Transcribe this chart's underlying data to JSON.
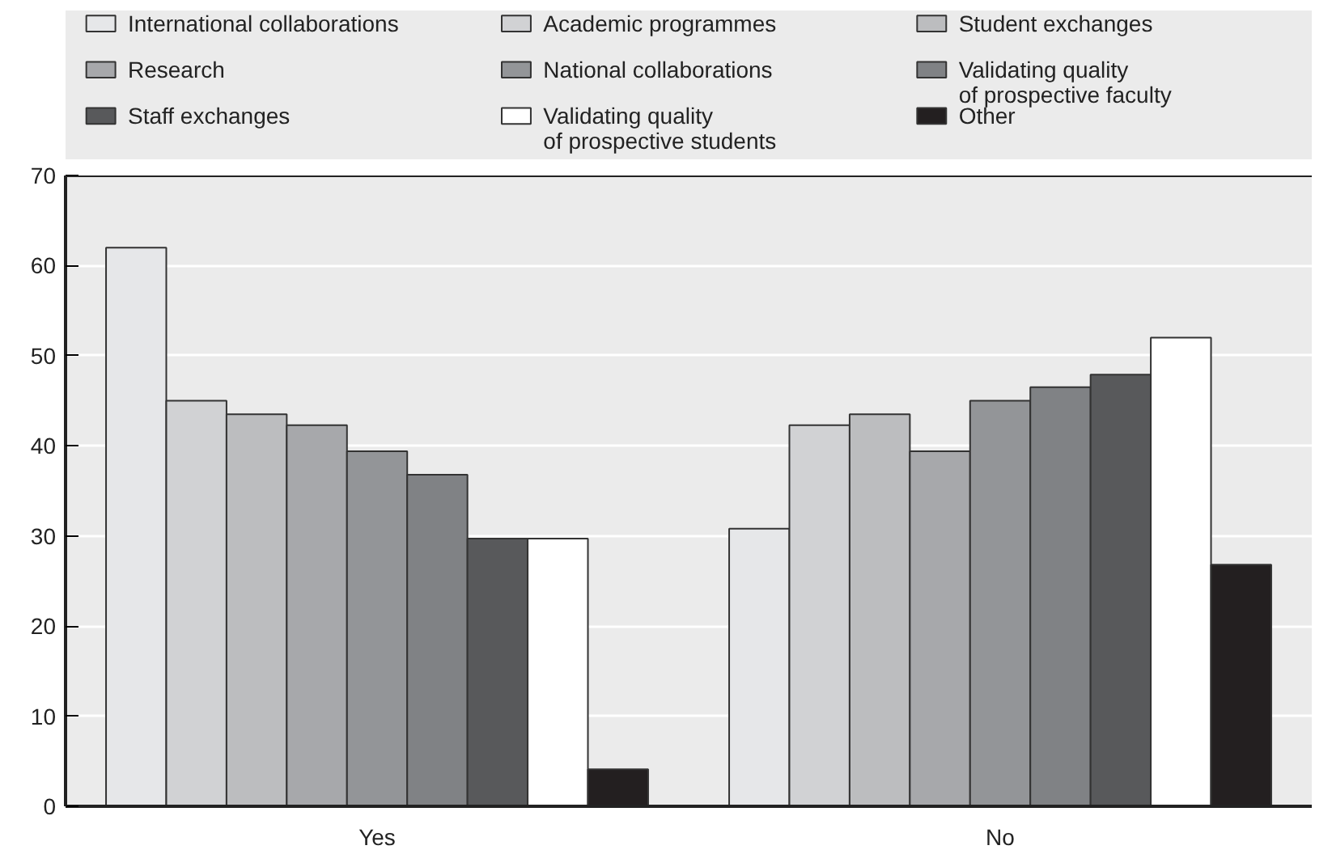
{
  "chart_data": {
    "type": "bar",
    "categories": [
      "Yes",
      "No"
    ],
    "series": [
      {
        "name": "International collaborations",
        "color": "#e6e7e9",
        "values": [
          62,
          30.8
        ]
      },
      {
        "name": "Academic programmes",
        "color": "#d1d2d4",
        "values": [
          45,
          42.3
        ]
      },
      {
        "name": "Student exchanges",
        "color": "#bcbdbf",
        "values": [
          43.5,
          43.5
        ]
      },
      {
        "name": "Research",
        "color": "#a7a8ab",
        "values": [
          42.3,
          39.4
        ]
      },
      {
        "name": "National collaborations",
        "color": "#939598",
        "values": [
          39.4,
          45
        ]
      },
      {
        "name": "Validating quality\nof prospective faculty",
        "color": "#808285",
        "values": [
          36.8,
          46.5
        ]
      },
      {
        "name": "Staff exchanges",
        "color": "#58595b",
        "values": [
          29.7,
          47.9
        ]
      },
      {
        "name": "Validating quality\nof prospective students",
        "color": "#ffffff",
        "values": [
          29.7,
          52
        ]
      },
      {
        "name": "Other",
        "color": "#231f20",
        "values": [
          4.1,
          26.8
        ]
      }
    ],
    "ylim": [
      0,
      70
    ],
    "yticks": [
      0,
      10,
      20,
      30,
      40,
      50,
      60,
      70
    ],
    "grid": "y",
    "legend": "top"
  }
}
